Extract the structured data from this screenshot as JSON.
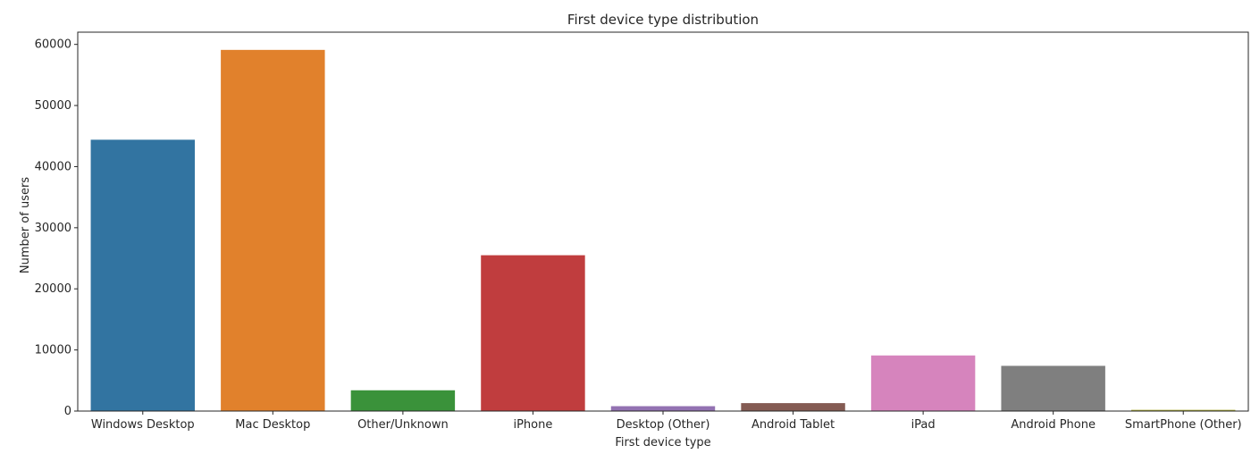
{
  "chart_data": {
    "type": "bar",
    "title": "First device type distribution",
    "xlabel": "First device type",
    "ylabel": "Number of users",
    "categories": [
      "Windows Desktop",
      "Mac Desktop",
      "Other/Unknown",
      "iPhone",
      "Desktop (Other)",
      "Android Tablet",
      "iPad",
      "Android Phone",
      "SmartPhone (Other)"
    ],
    "values": [
      44400,
      59100,
      3400,
      25500,
      800,
      1300,
      9100,
      7400,
      200
    ],
    "colors": [
      "#3274a1",
      "#e1812c",
      "#3a923a",
      "#c03d3e",
      "#9372b2",
      "#845b53",
      "#d684bd",
      "#7f7f7f",
      "#a9aa35"
    ],
    "ylim": [
      0,
      62000
    ],
    "yticks": [
      0,
      10000,
      20000,
      30000,
      40000,
      50000,
      60000
    ],
    "ytick_labels": [
      "0",
      "10000",
      "20000",
      "30000",
      "40000",
      "50000",
      "60000"
    ],
    "grid": false,
    "legend": "none"
  }
}
